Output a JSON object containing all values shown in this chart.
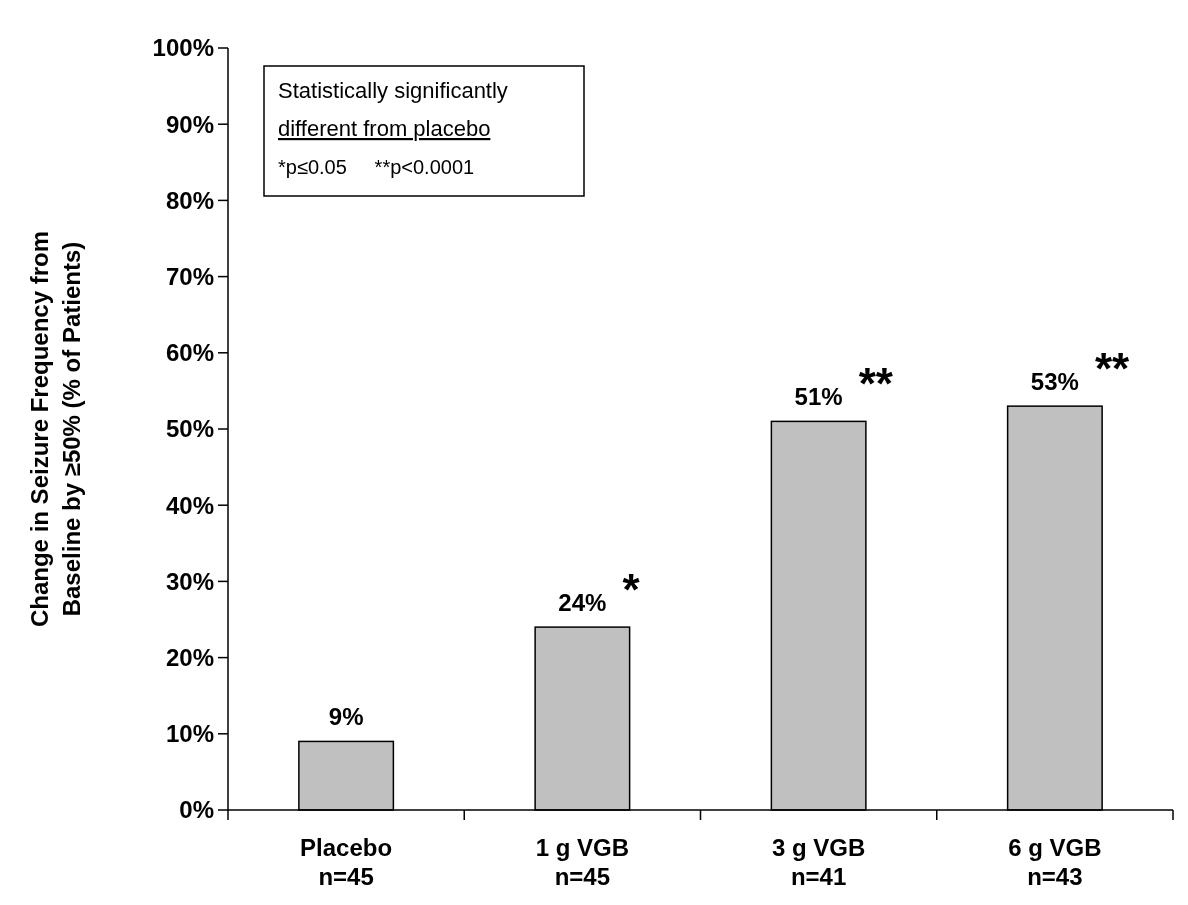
{
  "chart_data": {
    "type": "bar",
    "ylabel": "Change in Seizure Frequency from\nBaseline by ≥50% (% of Patients)",
    "categories": [
      "Placebo\nn=45",
      "1 g VGB\nn=45",
      "3 g VGB\nn=41",
      "6 g VGB\nn=43"
    ],
    "values": [
      9,
      24,
      51,
      53
    ],
    "value_labels": [
      "9%",
      "24%",
      "51%",
      "53%"
    ],
    "color": "#c0c0c0",
    "ylim": [
      0,
      100
    ],
    "yticks": [
      {
        "value": 0,
        "label": "0%"
      },
      {
        "value": 10,
        "label": "10%"
      },
      {
        "value": 20,
        "label": "20%"
      },
      {
        "value": 30,
        "label": "30%"
      },
      {
        "value": 40,
        "label": "40%"
      },
      {
        "value": 50,
        "label": "50%"
      },
      {
        "value": 60,
        "label": "60%"
      },
      {
        "value": 70,
        "label": "70%"
      },
      {
        "value": 80,
        "label": "80%"
      },
      {
        "value": 90,
        "label": "90%"
      },
      {
        "value": 100,
        "label": "100%"
      }
    ],
    "grid": false,
    "annotations": [
      "Statistically significantly",
      "different from placebo",
      "*p≤0.05     **p<0.0001",
      {
        "text": "*",
        "x": "1 g VGB\nn=45",
        "y": 24
      },
      {
        "text": "**",
        "x": "3 g VGB\nn=41",
        "y": 51
      },
      {
        "text": "**",
        "x": "6 g VGB\nn=43",
        "y": 53
      }
    ]
  }
}
